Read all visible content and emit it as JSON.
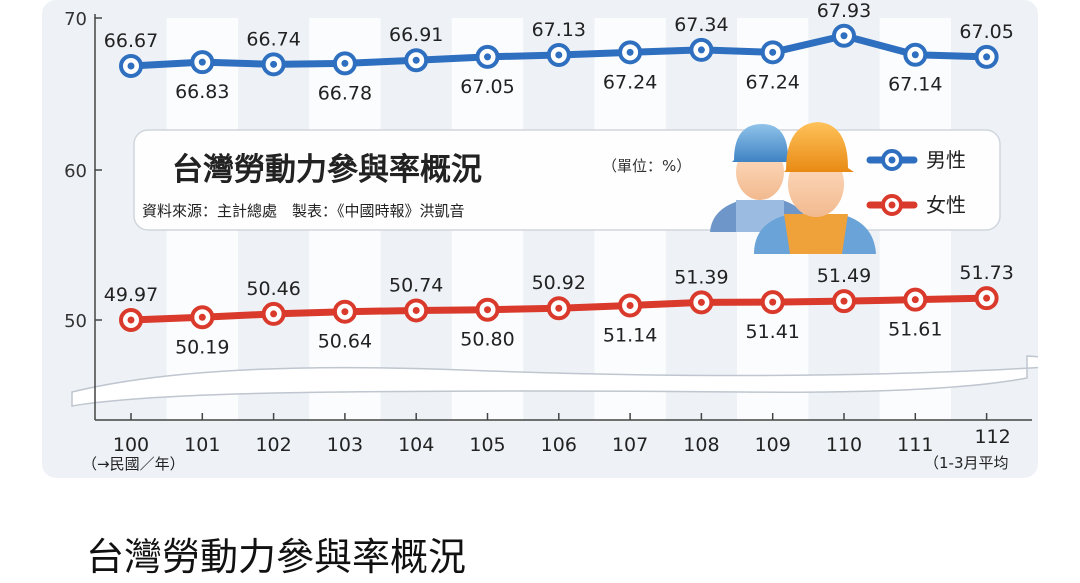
{
  "chart_data": {
    "type": "line",
    "title": "台灣勞動力參與率概況",
    "unit": "（單位：%）",
    "source": "資料來源：主計總處　製表：《中國時報》洪凱音",
    "categories": [
      "100",
      "101",
      "102",
      "103",
      "104",
      "105",
      "106",
      "107",
      "108",
      "109",
      "110",
      "111",
      "112"
    ],
    "x_note_left": "（→民國／年）",
    "x_note_right": "（1-3月平均",
    "yticks": [
      "70",
      "60",
      "50"
    ],
    "ylim": [
      45,
      70
    ],
    "axis_break": true,
    "series": [
      {
        "name": "男性",
        "color": "#2f6fbf",
        "values": [
          66.67,
          66.83,
          66.74,
          66.78,
          66.91,
          67.05,
          67.13,
          67.24,
          67.34,
          67.24,
          67.93,
          67.14,
          67.05
        ],
        "labels": [
          "66.67",
          "66.83",
          "66.74",
          "66.78",
          "66.91",
          "67.05",
          "67.13",
          "67.24",
          "67.34",
          "67.24",
          "67.93",
          "67.14",
          "67.05"
        ]
      },
      {
        "name": "女性",
        "color": "#d93a2b",
        "values": [
          49.97,
          50.19,
          50.46,
          50.64,
          50.74,
          50.8,
          50.92,
          51.14,
          51.39,
          51.41,
          51.49,
          51.61,
          51.73
        ],
        "labels": [
          "49.97",
          "50.19",
          "50.46",
          "50.64",
          "50.74",
          "50.80",
          "50.92",
          "51.14",
          "51.39",
          "51.41",
          "51.49",
          "51.61",
          "51.73"
        ]
      }
    ],
    "grid": "alternating vertical bands",
    "legend_position": "right, inside title box"
  },
  "caption": "台灣勞動力參與率概況",
  "icons": [
    "two-workers-icon"
  ]
}
